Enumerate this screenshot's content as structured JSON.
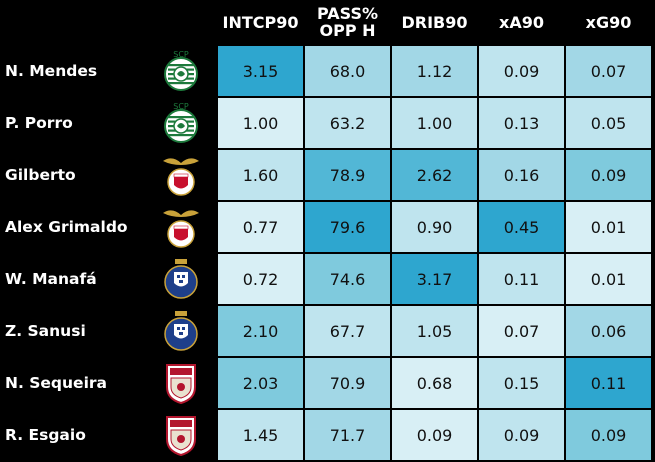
{
  "headers": [
    "INTCP90",
    "PASS%\nOPP H",
    "DRIB90",
    "xA90",
    "xG90"
  ],
  "colors": {
    "scale": [
      "#d8eff5",
      "#bfe4ee",
      "#a2d7e6",
      "#7fcadd",
      "#52b7d6",
      "#2ea6cf"
    ],
    "sporting": "#1d7a3c",
    "benfica": "#c8102e",
    "porto": "#1e3f8a",
    "braga": "#b3162e"
  },
  "rows": [
    {
      "name": "N. Mendes",
      "club": "sporting",
      "logo_text": "SCP",
      "values": [
        "3.15",
        "68.0",
        "1.12",
        "0.09",
        "0.07"
      ],
      "shades": [
        5,
        2,
        2,
        1,
        2
      ]
    },
    {
      "name": "P. Porro",
      "club": "sporting",
      "logo_text": "SCP",
      "values": [
        "1.00",
        "63.2",
        "1.00",
        "0.13",
        "0.05"
      ],
      "shades": [
        0,
        1,
        1,
        1,
        1
      ]
    },
    {
      "name": "Gilberto",
      "club": "benfica",
      "logo_text": "",
      "values": [
        "1.60",
        "78.9",
        "2.62",
        "0.16",
        "0.09"
      ],
      "shades": [
        1,
        4,
        4,
        2,
        3
      ]
    },
    {
      "name": "Alex Grimaldo",
      "club": "benfica",
      "logo_text": "",
      "values": [
        "0.77",
        "79.6",
        "0.90",
        "0.45",
        "0.01"
      ],
      "shades": [
        0,
        5,
        1,
        5,
        0
      ]
    },
    {
      "name": "W. Manafá",
      "club": "porto",
      "logo_text": "",
      "values": [
        "0.72",
        "74.6",
        "3.17",
        "0.11",
        "0.01"
      ],
      "shades": [
        0,
        3,
        5,
        1,
        0
      ]
    },
    {
      "name": "Z. Sanusi",
      "club": "porto",
      "logo_text": "",
      "values": [
        "2.10",
        "67.7",
        "1.05",
        "0.07",
        "0.06"
      ],
      "shades": [
        3,
        1,
        1,
        0,
        2
      ]
    },
    {
      "name": "N. Sequeira",
      "club": "braga",
      "logo_text": "",
      "values": [
        "2.03",
        "70.9",
        "0.68",
        "0.15",
        "0.11"
      ],
      "shades": [
        3,
        2,
        0,
        1,
        5
      ]
    },
    {
      "name": "R. Esgaio",
      "club": "braga",
      "logo_text": "",
      "values": [
        "1.45",
        "71.7",
        "0.09",
        "0.09",
        "0.09"
      ],
      "shades": [
        1,
        2,
        0,
        1,
        3
      ]
    }
  ]
}
